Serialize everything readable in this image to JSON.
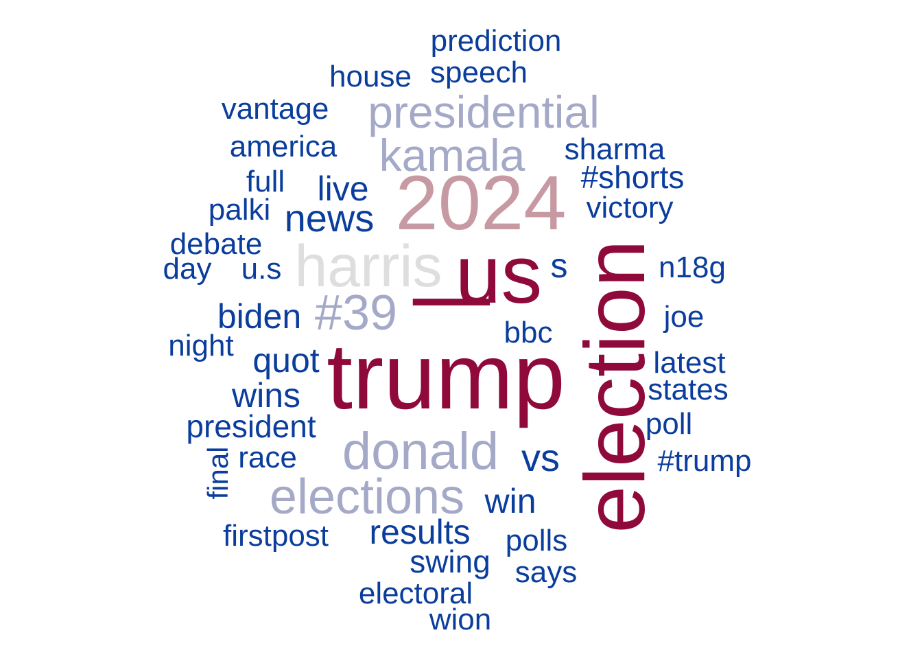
{
  "word_cloud": {
    "colors": {
      "dark": "#8f0a3b",
      "rose": "#c79aa3",
      "lavender": "#a5a9c8",
      "grey": "#dedede",
      "blue": "#0a3d9c"
    },
    "words": {
      "prediction": "prediction",
      "speech": "speech",
      "house": "house",
      "vantage": "vantage",
      "presidential": "presidential",
      "america": "america",
      "kamala": "kamala",
      "sharma": "sharma",
      "full": "full",
      "live": "live",
      "y2024": "2024",
      "shorts": "#shorts",
      "palki": "palki",
      "victory": "victory",
      "news": "news",
      "debate": "debate",
      "harris": "harris",
      "us": "us",
      "s": "s",
      "day": "day",
      "u_s": "u.s",
      "n18g": "n18g",
      "biden": "biden",
      "n39": "#39",
      "pipe": "|",
      "joe": "joe",
      "bbc": "bbc",
      "night": "night",
      "election": "election",
      "quot": "quot",
      "latest": "latest",
      "trump": "trump",
      "wins": "wins",
      "states": "states",
      "president": "president",
      "poll": "poll",
      "final": "final",
      "race": "race",
      "donald": "donald",
      "vs": "vs",
      "hashtrump": "#trump",
      "elections": "elections",
      "win": "win",
      "results": "results",
      "firstpost": "firstpost",
      "polls": "polls",
      "swing": "swing",
      "says": "says",
      "electoral": "electoral",
      "wion": "wion"
    }
  }
}
